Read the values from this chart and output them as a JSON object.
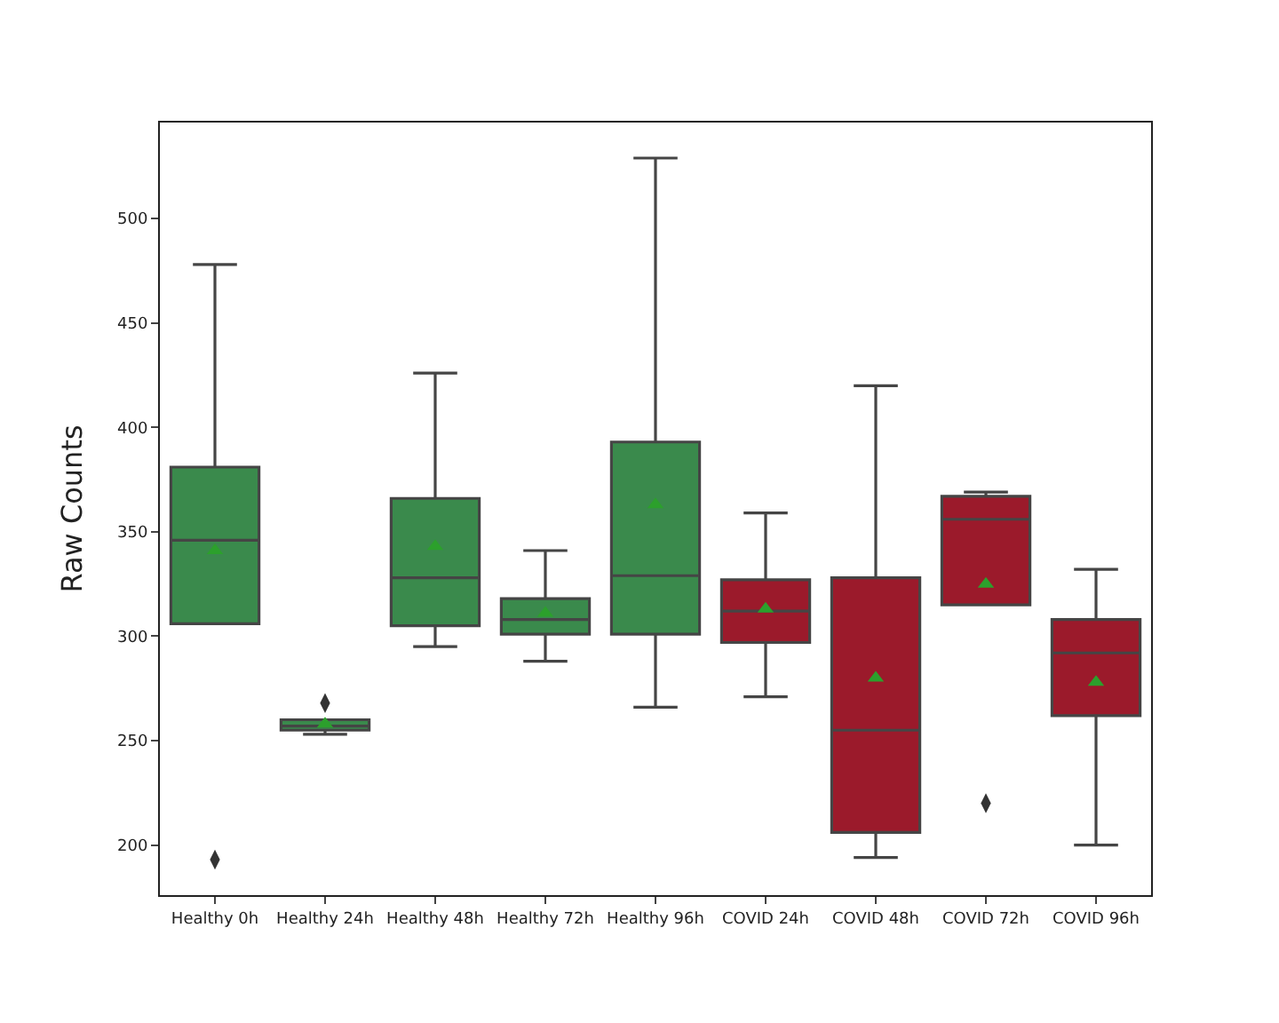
{
  "chart_data": {
    "type": "box",
    "ylabel": "Raw Counts",
    "categories": [
      "Healthy 0h",
      "Healthy 24h",
      "Healthy 48h",
      "Healthy 72h",
      "Healthy 96h",
      "COVID 24h",
      "COVID 48h",
      "COVID 72h",
      "COVID 96h"
    ],
    "colors": [
      "#3a8a4c",
      "#3a8a4c",
      "#3a8a4c",
      "#3a8a4c",
      "#3a8a4c",
      "#9b1a2b",
      "#9b1a2b",
      "#9b1a2b",
      "#9b1a2b"
    ],
    "boxes": [
      {
        "low": 306,
        "q1": 306,
        "median": 346,
        "q3": 381,
        "high": 478,
        "mean": 341,
        "outliers": [
          193
        ]
      },
      {
        "low": 253,
        "q1": 255,
        "median": 257,
        "q3": 260,
        "high": 260,
        "mean": 258,
        "outliers": [
          268
        ]
      },
      {
        "low": 295,
        "q1": 305,
        "median": 328,
        "q3": 366,
        "high": 426,
        "mean": 343
      },
      {
        "low": 288,
        "q1": 301,
        "median": 308,
        "q3": 318,
        "high": 341,
        "mean": 311
      },
      {
        "low": 266,
        "q1": 301,
        "median": 329,
        "q3": 393,
        "high": 529,
        "mean": 363
      },
      {
        "low": 271,
        "q1": 297,
        "median": 312,
        "q3": 327,
        "high": 359,
        "mean": 313
      },
      {
        "low": 194,
        "q1": 206,
        "median": 255,
        "q3": 328,
        "high": 420,
        "mean": 280
      },
      {
        "low": 315,
        "q1": 315,
        "median": 356,
        "q3": 367,
        "high": 369,
        "mean": 325,
        "outliers": [
          220
        ]
      },
      {
        "low": 200,
        "q1": 262,
        "median": 292,
        "q3": 308,
        "high": 332,
        "mean": 278
      }
    ],
    "ylim": [
      176,
      546
    ],
    "yticks": [
      200,
      250,
      300,
      350,
      400,
      450,
      500
    ]
  }
}
